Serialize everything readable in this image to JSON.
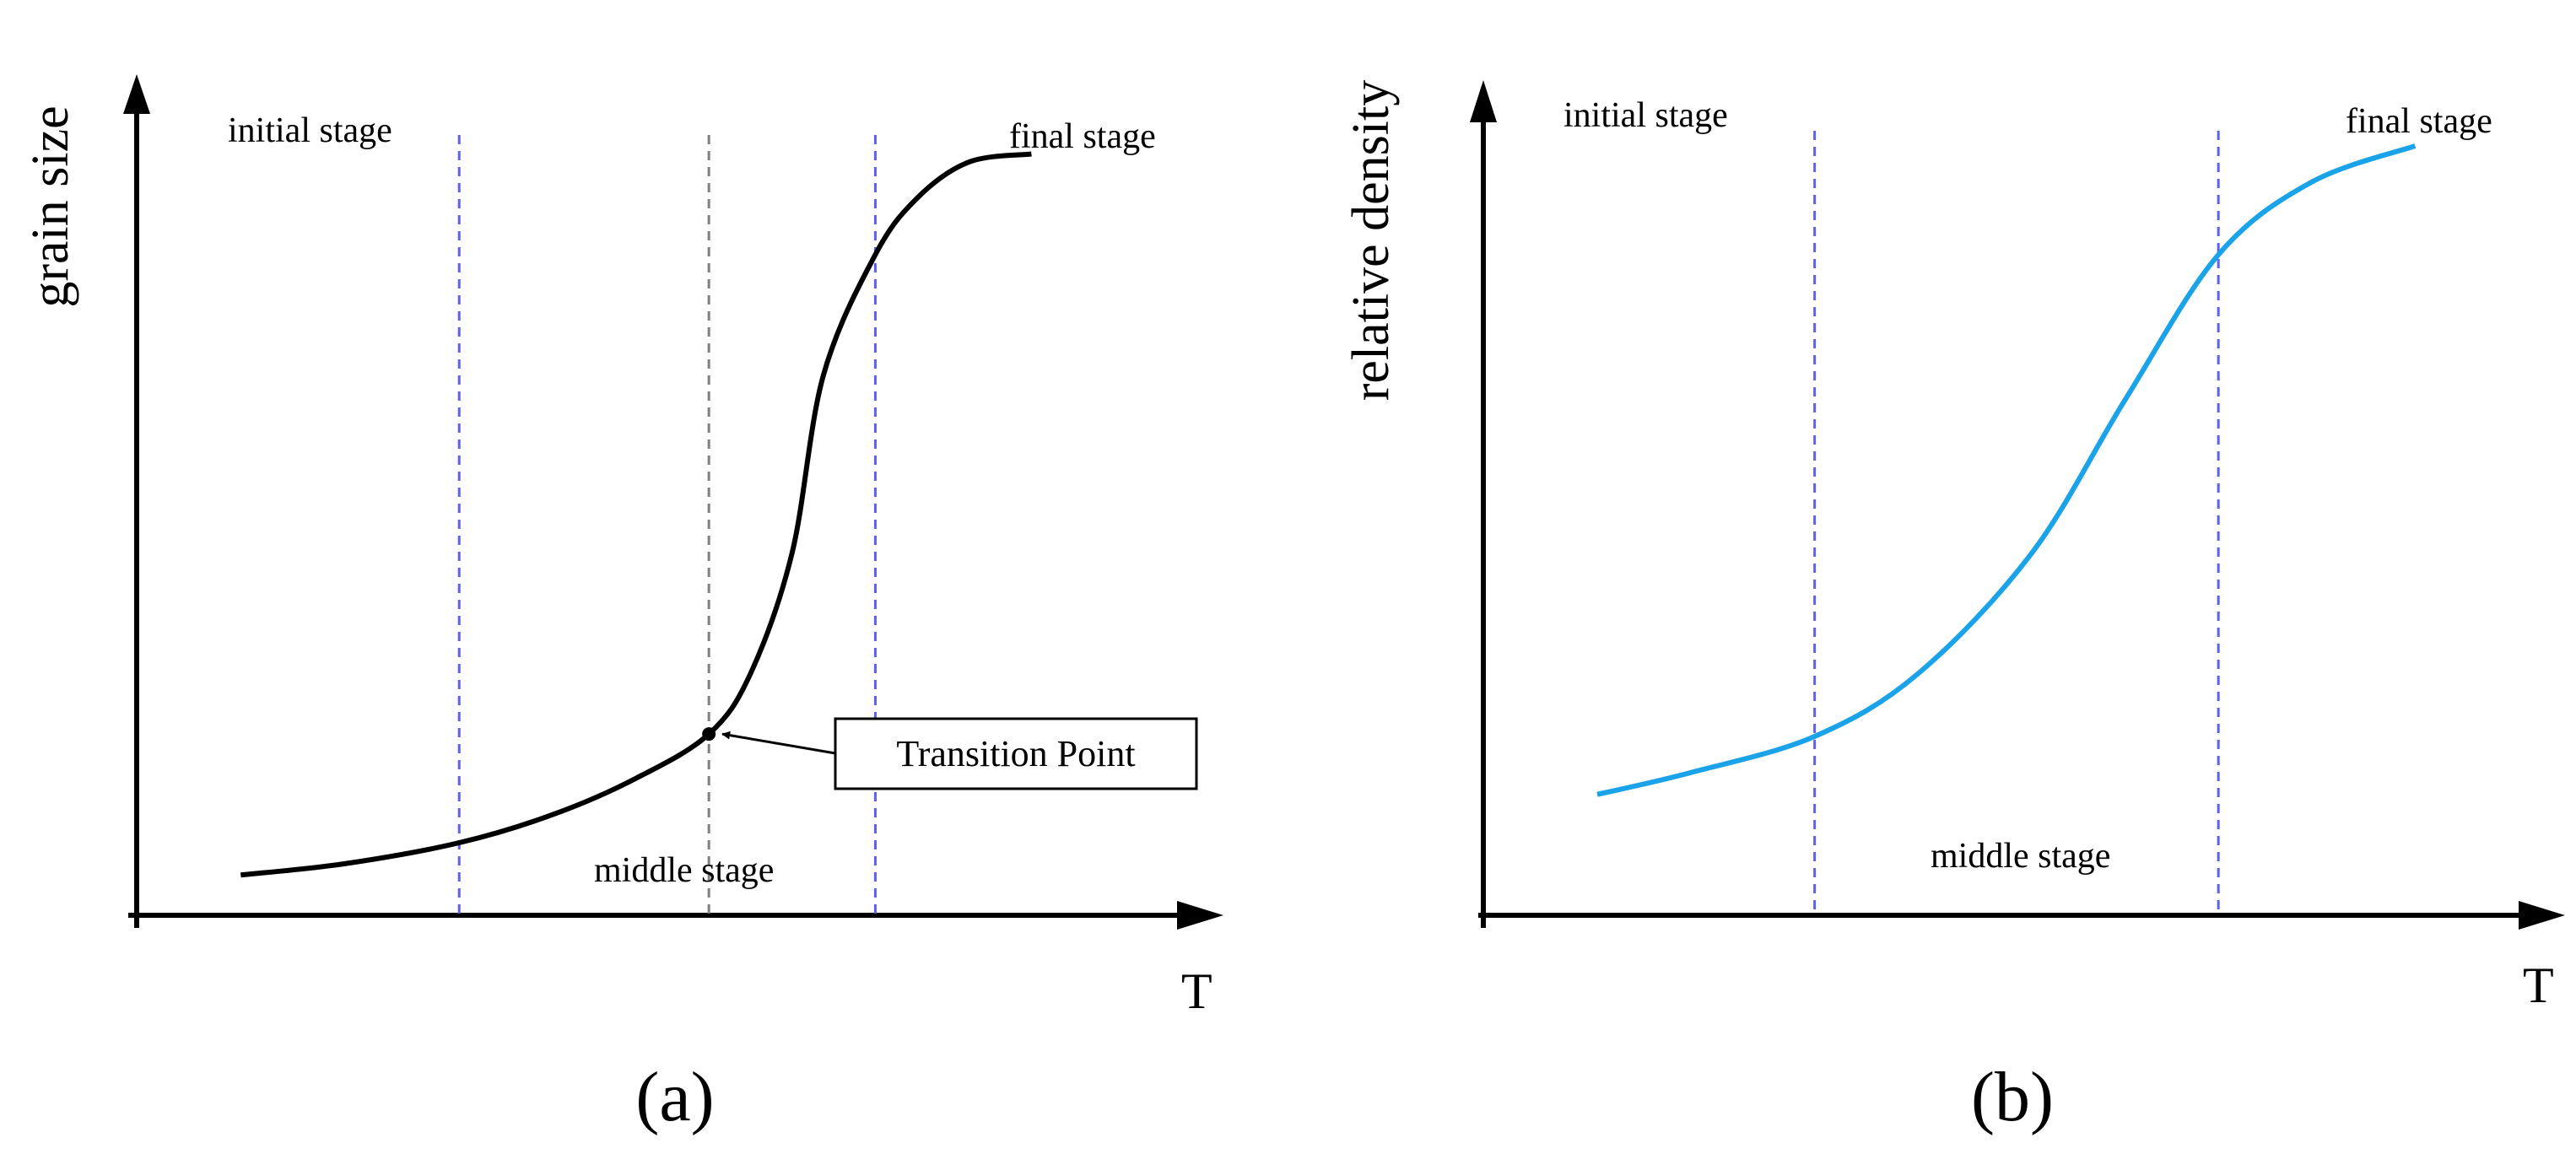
{
  "figure": {
    "panels": [
      {
        "caption": "(a)",
        "ylabel": "grain size",
        "xlabel": "T",
        "stages": {
          "initial": "initial stage",
          "middle": "middle stage",
          "final": "final stage"
        },
        "annotation": "Transition Point"
      },
      {
        "caption": "(b)",
        "ylabel": "relative density",
        "xlabel": "T",
        "stages": {
          "initial": "initial stage",
          "middle": "middle stage",
          "final": "final stage"
        }
      }
    ]
  },
  "colors": {
    "axis": "#000000",
    "curve_a": "#000000",
    "curve_b": "#1aa3e8",
    "stage_boundary": "#5f5ff0",
    "transition_line": "#808080"
  },
  "chart_data": [
    {
      "type": "line",
      "title": "",
      "xlabel": "T",
      "ylabel": "grain size",
      "xlim": [
        0,
        100
      ],
      "ylim": [
        0,
        100
      ],
      "stage_boundaries": [
        31,
        71
      ],
      "transition_x": 55,
      "series": [
        {
          "x": [
            10,
            20,
            31,
            40,
            48,
            55,
            59,
            63,
            66,
            71,
            75,
            80,
            86
          ],
          "y": [
            5,
            6.4,
            9,
            12.5,
            17,
            22.5,
            30,
            45,
            67,
            82,
            89,
            93.5,
            94.5
          ]
        }
      ],
      "annotations": [
        {
          "text": "Transition Point",
          "x": 55,
          "y": 22.5
        }
      ],
      "grid": false
    },
    {
      "type": "line",
      "title": "",
      "xlabel": "T",
      "ylabel": "relative density",
      "xlim": [
        0,
        100
      ],
      "ylim": [
        0,
        100
      ],
      "stage_boundaries": [
        32,
        71
      ],
      "series": [
        {
          "x": [
            11,
            20,
            32,
            42,
            53,
            62,
            71,
            80,
            90
          ],
          "y": [
            15,
            17.7,
            22.2,
            30,
            45,
            64,
            82,
            91,
            95.5
          ]
        }
      ],
      "grid": false
    }
  ]
}
